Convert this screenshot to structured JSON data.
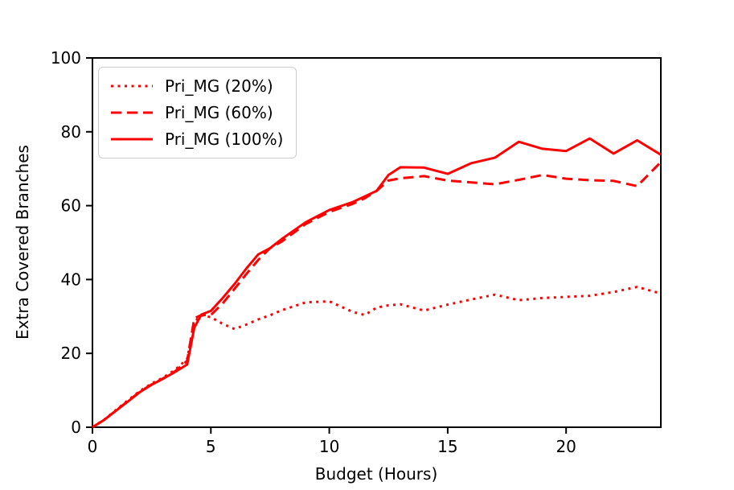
{
  "chart_data": {
    "type": "line",
    "title": "",
    "xlabel": "Budget (Hours)",
    "ylabel": "Extra Covered Branches",
    "xlim": [
      0,
      24
    ],
    "ylim": [
      0,
      100
    ],
    "x_ticks": [
      0,
      5,
      10,
      15,
      20
    ],
    "y_ticks": [
      0,
      20,
      40,
      60,
      80,
      100
    ],
    "grid": false,
    "legend_position": "upper-left",
    "line_color": "#ff0000",
    "axis_color": "#000000",
    "x": [
      0,
      0.5,
      1,
      1.5,
      2,
      2.5,
      3,
      3.5,
      4,
      4.3,
      4.6,
      5,
      5.5,
      6,
      6.5,
      7,
      7.5,
      8,
      9,
      10,
      11,
      11.5,
      12,
      12.5,
      13,
      14,
      15,
      16,
      17,
      18,
      19,
      20,
      21,
      22,
      23,
      24
    ],
    "series": [
      {
        "name": "Pri_MG (20%)",
        "style": "dotted",
        "values": [
          0,
          2.1,
          4.7,
          7.3,
          9.8,
          11.8,
          13.5,
          15.6,
          18.5,
          28.5,
          30.3,
          29.8,
          28,
          26.6,
          27.8,
          29.2,
          30.3,
          31.7,
          33.8,
          34.1,
          31.2,
          30.4,
          32.4,
          33,
          33.3,
          31.6,
          33.2,
          34.6,
          35.9,
          34.4,
          35,
          35.3,
          35.6,
          36.6,
          38,
          36.2
        ]
      },
      {
        "name": "Pri_MG (60%)",
        "style": "dashed",
        "values": [
          0,
          2,
          4.6,
          7.1,
          9.6,
          11.6,
          13.3,
          15.2,
          18,
          29.5,
          30.4,
          30.4,
          33.5,
          37.5,
          41.5,
          45.3,
          48.5,
          50.3,
          55,
          58.3,
          60.5,
          62,
          64,
          66.8,
          67.4,
          68,
          66.8,
          66.3,
          65.8,
          67,
          68.3,
          67.3,
          66.9,
          66.7,
          65.3,
          71.8
        ]
      },
      {
        "name": "Pri_MG (100%)",
        "style": "solid",
        "values": [
          0,
          2,
          4.5,
          7,
          9.5,
          11.5,
          13.2,
          15,
          17,
          27,
          30.5,
          31.5,
          35,
          38.8,
          43,
          46.8,
          48.5,
          51,
          55.5,
          58.8,
          61,
          62.5,
          64,
          68.3,
          70.4,
          70.3,
          68.6,
          71.5,
          73,
          77.3,
          75.4,
          74.8,
          78.2,
          74.1,
          77.7,
          73.8
        ]
      }
    ]
  }
}
